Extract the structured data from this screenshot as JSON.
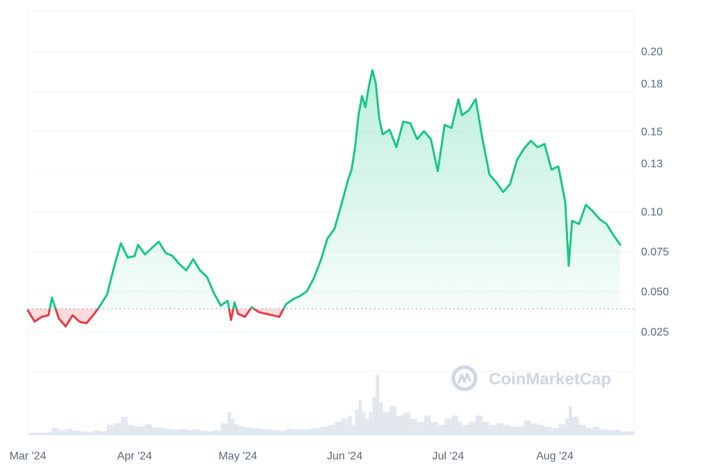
{
  "colors": {
    "up": "#16c784",
    "down": "#ea3943",
    "grid": "#eff2f5",
    "axis_text": "#58667e",
    "volume": "#e3e7ee",
    "baseline": "#9aa0a6",
    "watermark": "#cfd6e4"
  },
  "watermark": {
    "text": "CoinMarketCap",
    "icon": "coinmarketcap-logo-icon"
  },
  "chart_data": {
    "type": "area",
    "x_axis": {
      "type": "date",
      "ticks": [
        "Mar '24",
        "Apr '24",
        "May '24",
        "Jun '24",
        "Jul '24",
        "Aug '24"
      ]
    },
    "y_axis": {
      "ticks": [
        "0.025",
        "0.050",
        "0.075",
        "0.10",
        "0.13",
        "0.15",
        "0.18",
        "0.20"
      ],
      "range": [
        0,
        0.225
      ],
      "position": "right"
    },
    "grid": true,
    "baseline": 0.039,
    "series": [
      {
        "x": [
          "2024-03-01",
          "2024-03-03",
          "2024-03-05",
          "2024-03-07",
          "2024-03-08",
          "2024-03-10",
          "2024-03-12",
          "2024-03-14",
          "2024-03-16",
          "2024-03-18",
          "2024-03-20",
          "2024-03-22",
          "2024-03-24",
          "2024-03-26",
          "2024-03-28",
          "2024-03-30",
          "2024-04-01",
          "2024-04-02",
          "2024-04-04",
          "2024-04-06",
          "2024-04-08",
          "2024-04-10",
          "2024-04-12",
          "2024-04-14",
          "2024-04-16",
          "2024-04-18",
          "2024-04-20",
          "2024-04-22",
          "2024-04-24",
          "2024-04-26",
          "2024-04-28",
          "2024-04-29",
          "2024-04-30",
          "2024-05-01",
          "2024-05-03",
          "2024-05-05",
          "2024-05-07",
          "2024-05-09",
          "2024-05-11",
          "2024-05-13",
          "2024-05-15",
          "2024-05-17",
          "2024-05-19",
          "2024-05-21",
          "2024-05-23",
          "2024-05-25",
          "2024-05-27",
          "2024-05-29",
          "2024-05-31",
          "2024-06-02",
          "2024-06-03",
          "2024-06-04",
          "2024-06-05",
          "2024-06-06",
          "2024-06-07",
          "2024-06-08",
          "2024-06-09",
          "2024-06-10",
          "2024-06-11",
          "2024-06-12",
          "2024-06-14",
          "2024-06-16",
          "2024-06-18",
          "2024-06-20",
          "2024-06-22",
          "2024-06-24",
          "2024-06-26",
          "2024-06-28",
          "2024-06-30",
          "2024-07-02",
          "2024-07-04",
          "2024-07-05",
          "2024-07-07",
          "2024-07-09",
          "2024-07-11",
          "2024-07-13",
          "2024-07-15",
          "2024-07-17",
          "2024-07-19",
          "2024-07-21",
          "2024-07-23",
          "2024-07-25",
          "2024-07-27",
          "2024-07-29",
          "2024-07-31",
          "2024-08-02",
          "2024-08-04",
          "2024-08-05",
          "2024-08-06",
          "2024-08-08",
          "2024-08-10",
          "2024-08-12",
          "2024-08-14",
          "2024-08-16",
          "2024-08-18",
          "2024-08-20"
        ],
        "y": [
          0.038,
          0.031,
          0.034,
          0.035,
          0.046,
          0.033,
          0.028,
          0.035,
          0.031,
          0.03,
          0.035,
          0.041,
          0.048,
          0.065,
          0.08,
          0.071,
          0.072,
          0.079,
          0.073,
          0.077,
          0.081,
          0.074,
          0.072,
          0.067,
          0.063,
          0.07,
          0.063,
          0.059,
          0.049,
          0.041,
          0.044,
          0.032,
          0.043,
          0.036,
          0.034,
          0.04,
          0.037,
          0.036,
          0.035,
          0.034,
          0.042,
          0.045,
          0.047,
          0.05,
          0.058,
          0.069,
          0.083,
          0.089,
          0.104,
          0.12,
          0.126,
          0.14,
          0.16,
          0.172,
          0.165,
          0.178,
          0.188,
          0.18,
          0.158,
          0.148,
          0.151,
          0.14,
          0.156,
          0.155,
          0.145,
          0.15,
          0.145,
          0.125,
          0.154,
          0.152,
          0.17,
          0.16,
          0.163,
          0.17,
          0.145,
          0.123,
          0.118,
          0.112,
          0.117,
          0.132,
          0.139,
          0.144,
          0.14,
          0.142,
          0.126,
          0.128,
          0.106,
          0.066,
          0.094,
          0.092,
          0.104,
          0.1,
          0.095,
          0.092,
          0.085,
          0.079
        ]
      }
    ],
    "volume": [
      0.2,
      0.25,
      0.3,
      0.4,
      1.0,
      0.7,
      0.9,
      0.6,
      0.5,
      0.4,
      0.6,
      0.5,
      1.5,
      1.8,
      2.8,
      1.5,
      1.2,
      1.3,
      1.6,
      1.1,
      1.0,
      0.9,
      0.8,
      0.9,
      0.7,
      0.8,
      0.6,
      0.5,
      0.7,
      1.8,
      3.5,
      2.5,
      1.6,
      1.3,
      1.1,
      1.0,
      0.9,
      0.8,
      0.7,
      0.6,
      0.9,
      0.8,
      0.8,
      0.9,
      1.0,
      1.2,
      1.5,
      2.0,
      2.5,
      3.0,
      1.5,
      4.0,
      5.5,
      3.5,
      2.5,
      3.5,
      6.0,
      9.5,
      5.0,
      3.5,
      4.5,
      3.0,
      3.5,
      2.5,
      2.0,
      3.0,
      2.0,
      1.5,
      2.5,
      3.0,
      2.0,
      1.5,
      2.0,
      3.0,
      2.0,
      1.5,
      1.8,
      1.5,
      1.2,
      1.3,
      2.2,
      1.8,
      1.5,
      1.2,
      1.0,
      1.6,
      2.5,
      4.5,
      2.8,
      1.5,
      1.0,
      1.2,
      0.8,
      0.7,
      0.8,
      0.5
    ]
  }
}
